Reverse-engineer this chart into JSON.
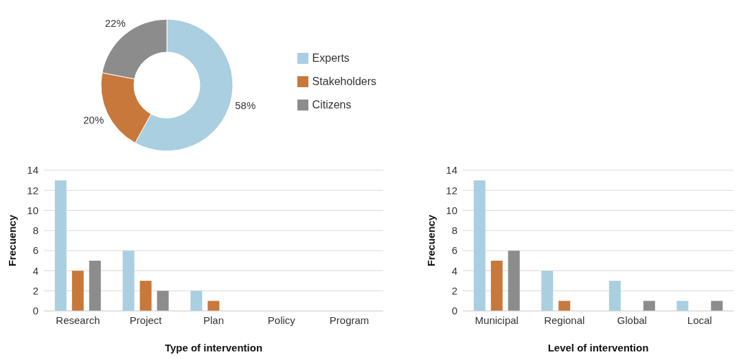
{
  "chart_data": [
    {
      "type": "donut",
      "categories": [
        "Experts",
        "Stakeholders",
        "Citizens"
      ],
      "values": [
        58,
        20,
        22
      ],
      "colors": [
        "#a9cfe0",
        "#c8783a",
        "#8c8c8c"
      ],
      "value_labels": [
        "58%",
        "20%",
        "22%"
      ],
      "legend": "right"
    },
    {
      "type": "bar",
      "categories": [
        "Research",
        "Project",
        "Plan",
        "Policy",
        "Program"
      ],
      "series": [
        {
          "color": "#a9cfe0",
          "values": [
            13,
            6,
            2,
            0,
            0
          ]
        },
        {
          "color": "#c8783a",
          "values": [
            4,
            3,
            1,
            0,
            0
          ]
        },
        {
          "color": "#8c8c8c",
          "values": [
            5,
            2,
            0,
            0,
            0
          ]
        }
      ],
      "xlabel": "Type of intervention",
      "ylabel": "Frecuency",
      "ylim": [
        0,
        14
      ],
      "yticks": [
        0,
        2,
        4,
        6,
        8,
        10,
        12,
        14
      ],
      "grid": "y"
    },
    {
      "type": "bar",
      "categories": [
        "Municipal",
        "Regional",
        "Global",
        "Local"
      ],
      "series": [
        {
          "color": "#a9cfe0",
          "values": [
            13,
            4,
            3,
            1
          ]
        },
        {
          "color": "#c8783a",
          "values": [
            5,
            1,
            0,
            0
          ]
        },
        {
          "color": "#8c8c8c",
          "values": [
            6,
            0,
            1,
            1
          ]
        }
      ],
      "xlabel": "Level of intervention",
      "ylabel": "Frecuency",
      "ylim": [
        0,
        14
      ],
      "yticks": [
        0,
        2,
        4,
        6,
        8,
        10,
        12,
        14
      ],
      "grid": "y"
    }
  ]
}
